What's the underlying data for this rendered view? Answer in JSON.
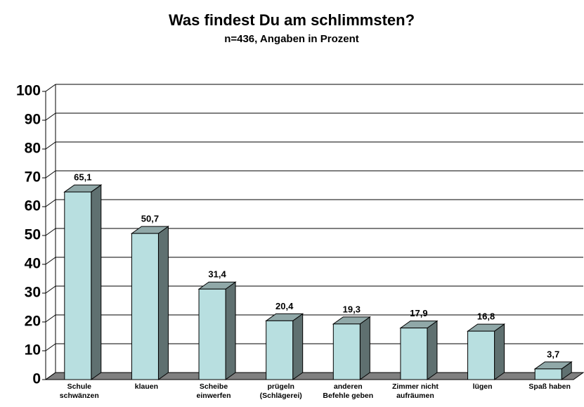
{
  "chart_data": {
    "type": "bar3d",
    "title": "Was findest Du am schlimmsten?",
    "subtitle": "n=436, Angaben in Prozent",
    "categories": [
      "Schule\nschwänzen",
      "klauen",
      "Scheibe\neinwerfen",
      "prügeln\n(Schlägerei)",
      "anderen\nBefehle geben",
      "Zimmer nicht\naufräumen",
      "lügen",
      "Spaß haben"
    ],
    "values": [
      65.1,
      50.7,
      31.4,
      20.4,
      19.3,
      17.9,
      16.8,
      3.7
    ],
    "value_labels": [
      "65,1",
      "50,7",
      "31,4",
      "20,4",
      "19,3",
      "17,9",
      "16,8",
      "3,7"
    ],
    "color": "#b8dfe0",
    "ylim": [
      0,
      100
    ],
    "yticks": [
      0,
      10,
      20,
      30,
      40,
      50,
      60,
      70,
      80,
      90,
      100
    ],
    "grid": true
  }
}
